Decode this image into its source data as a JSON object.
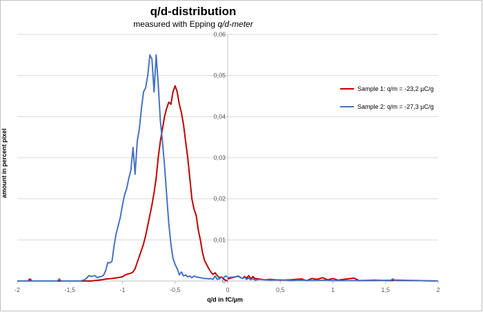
{
  "chart_data": {
    "type": "line",
    "title": "q/d-distribution",
    "subtitle_prefix": "measured with Epping ",
    "subtitle_italic": "q/d-meter",
    "xlabel": "q/d in fC/µm",
    "ylabel": "amount in percent pixel",
    "xlim": [
      -2,
      2
    ],
    "ylim": [
      0,
      0.06
    ],
    "x_ticks": [
      "-2",
      "-1,5",
      "-1",
      "-0,5",
      "0",
      "0,5",
      "1",
      "1,5",
      "2"
    ],
    "y_ticks": [
      "0",
      "0,01",
      "0,02",
      "0,03",
      "0,04",
      "0,05",
      "0,06"
    ],
    "grid": "horizontal",
    "legend_position": "right",
    "series": [
      {
        "name": "Sample 1: q/m = -23,2 µC/g",
        "color": "#c00000",
        "x": [
          -2,
          -1.9,
          -1.88,
          -1.86,
          -1.8,
          -1.5,
          -1.3,
          -1.2,
          -1.15,
          -1.1,
          -1.05,
          -1.0,
          -0.98,
          -0.95,
          -0.92,
          -0.9,
          -0.88,
          -0.86,
          -0.84,
          -0.82,
          -0.8,
          -0.78,
          -0.76,
          -0.74,
          -0.72,
          -0.7,
          -0.68,
          -0.66,
          -0.64,
          -0.62,
          -0.6,
          -0.58,
          -0.56,
          -0.54,
          -0.52,
          -0.5,
          -0.48,
          -0.46,
          -0.44,
          -0.42,
          -0.4,
          -0.38,
          -0.36,
          -0.34,
          -0.32,
          -0.3,
          -0.28,
          -0.26,
          -0.24,
          -0.22,
          -0.2,
          -0.18,
          -0.16,
          -0.14,
          -0.12,
          -0.1,
          -0.08,
          -0.06,
          -0.04,
          -0.02,
          0
        ],
        "y": [
          0,
          0,
          0.0005,
          0,
          0,
          0,
          0,
          0.0003,
          0.0005,
          0.0006,
          0.0008,
          0.001,
          0.0014,
          0.0017,
          0.0019,
          0.0022,
          0.003,
          0.0045,
          0.006,
          0.0075,
          0.009,
          0.011,
          0.0135,
          0.016,
          0.0185,
          0.0215,
          0.025,
          0.03,
          0.034,
          0.037,
          0.04,
          0.042,
          0.0435,
          0.043,
          0.046,
          0.0475,
          0.046,
          0.043,
          0.041,
          0.038,
          0.034,
          0.03,
          0.025,
          0.02,
          0.0175,
          0.016,
          0.0125,
          0.01,
          0.007,
          0.005,
          0.004,
          0.003,
          0.0022,
          0.0016,
          0.002,
          0.0013,
          0.0008,
          0.001,
          0.0005,
          0.0002,
          0
        ]
      },
      {
        "name": "Sample 2: q/m = -27,3 µC/g",
        "color": "#4472c4",
        "x": [
          -2,
          -1.7,
          -1.62,
          -1.6,
          -1.58,
          -1.5,
          -1.4,
          -1.36,
          -1.34,
          -1.32,
          -1.3,
          -1.28,
          -1.26,
          -1.24,
          -1.22,
          -1.2,
          -1.18,
          -1.16,
          -1.14,
          -1.12,
          -1.1,
          -1.08,
          -1.06,
          -1.04,
          -1.02,
          -1.0,
          -0.98,
          -0.96,
          -0.94,
          -0.92,
          -0.9,
          -0.88,
          -0.86,
          -0.84,
          -0.82,
          -0.8,
          -0.78,
          -0.76,
          -0.74,
          -0.72,
          -0.7,
          -0.68,
          -0.66,
          -0.64,
          -0.62,
          -0.6,
          -0.58,
          -0.56,
          -0.54,
          -0.52,
          -0.5,
          -0.48,
          -0.46,
          -0.44,
          -0.42,
          -0.4,
          -0.38,
          -0.36,
          -0.34,
          -0.32,
          -0.3,
          -0.28,
          -0.26,
          -0.24,
          -0.22,
          -0.2,
          -0.18,
          -0.16,
          -0.14,
          -0.12,
          -0.1,
          -0.08,
          -0.06,
          -0.04,
          -0.02,
          0
        ],
        "y": [
          0,
          0,
          0,
          0.0005,
          0,
          0,
          0,
          0.0003,
          0.0007,
          0.0013,
          0.0011,
          0.0012,
          0.0013,
          0.0008,
          0.001,
          0.0011,
          0.0014,
          0.0025,
          0.0045,
          0.0044,
          0.0048,
          0.0085,
          0.0115,
          0.0135,
          0.0155,
          0.0185,
          0.021,
          0.0225,
          0.025,
          0.027,
          0.0325,
          0.026,
          0.034,
          0.037,
          0.042,
          0.046,
          0.047,
          0.05,
          0.055,
          0.054,
          0.046,
          0.055,
          0.048,
          0.039,
          0.034,
          0.028,
          0.021,
          0.014,
          0.009,
          0.0055,
          0.004,
          0.003,
          0.0015,
          0.0022,
          0.0012,
          0.0015,
          0.001,
          0.0012,
          0.0008,
          0.0012,
          0.001,
          0.0009,
          0.0008,
          0.0007,
          0.0006,
          0.0006,
          0.0005,
          0.0006,
          0.0004,
          0.0012,
          0.0004,
          0.0005,
          0.0009,
          0.0008,
          0.0012,
          0.001
        ]
      },
      {
        "name": "Sample 1: q/m = -23,2 µC/g",
        "color": "#c00000",
        "x": [
          0.0,
          0.1,
          0.14,
          0.16,
          0.18,
          0.2,
          0.22,
          0.24,
          0.26,
          0.3,
          0.35,
          0.4,
          0.5,
          0.6,
          0.7,
          0.75,
          0.8,
          0.85,
          0.9,
          0.95,
          1.0,
          1.05,
          1.1,
          1.2,
          1.25,
          1.4,
          1.55,
          1.6,
          1.8,
          2.0
        ],
        "y": [
          0.0005,
          0.0012,
          0.0006,
          0.0011,
          0.0007,
          0.0013,
          0.0005,
          0.0011,
          0.0006,
          0.0005,
          0.0003,
          0.0004,
          0.0002,
          0.0003,
          0.0005,
          0.0001,
          0.0006,
          0.0004,
          0.0008,
          0.0003,
          0.0006,
          0.0002,
          0.0004,
          0.0007,
          0.0001,
          0.0002,
          0.0001,
          0.0002,
          0.0001,
          0
        ]
      },
      {
        "name": "Sample 2: q/m = -27,3 µC/g",
        "color": "#4472c4",
        "x": [
          0.0,
          0.1,
          0.14,
          0.16,
          0.18,
          0.2,
          0.22,
          0.24,
          0.26,
          0.3,
          0.4,
          0.5,
          0.6,
          0.7,
          0.8,
          0.9,
          1.0,
          1.2,
          1.4,
          1.55,
          1.57,
          1.6,
          1.8,
          2.0
        ],
        "y": [
          0.0008,
          0.0011,
          0.0006,
          0.0009,
          0.0004,
          0.0007,
          0.0003,
          0.0006,
          0.0002,
          0.0004,
          0.0002,
          0.0003,
          0.0001,
          0.0002,
          0.0001,
          0.0002,
          0.0001,
          0.0001,
          0.0001,
          0.0002,
          0.0005,
          0.0001,
          0.0001,
          0
        ]
      }
    ]
  }
}
